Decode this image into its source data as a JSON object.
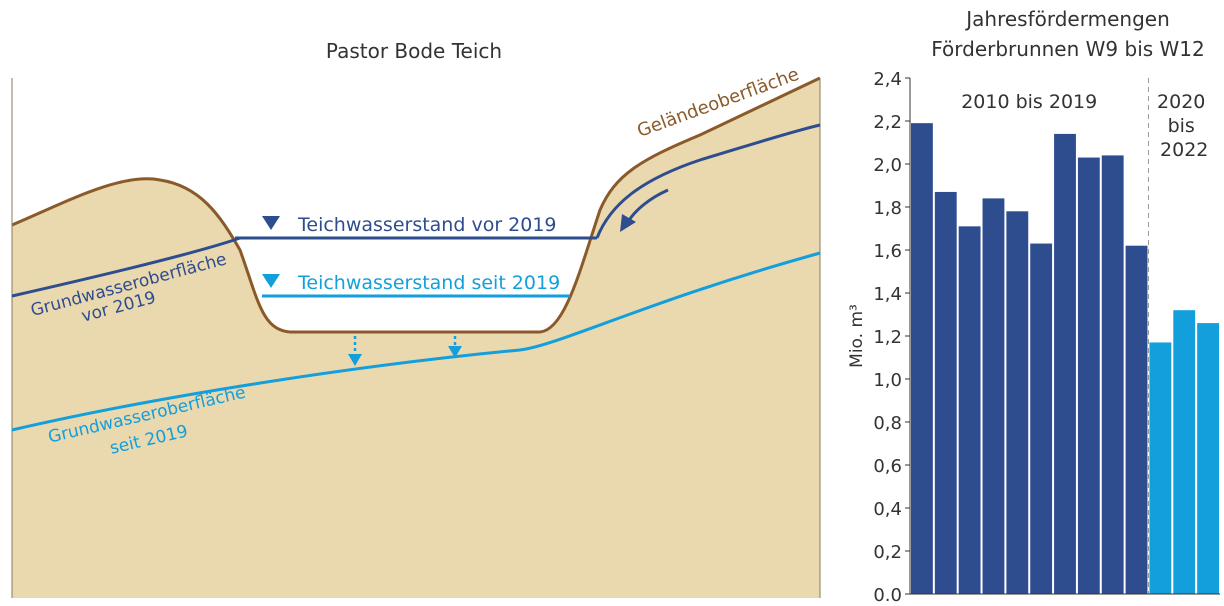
{
  "diagram": {
    "title": "Pastor Bode Teich",
    "labels": {
      "terrain": "Geländeoberfläche",
      "pond_before": "Teichwasserstand vor 2019",
      "pond_since": "Teichwasserstand seit 2019",
      "groundwater_before": [
        "Grundwasseroberfläche",
        "vor 2019"
      ],
      "groundwater_since": [
        "Grundwasseroberfläche",
        "seit 2019"
      ]
    }
  },
  "chart_data": {
    "type": "bar",
    "title": [
      "Jahresfördermengen",
      "Förderbrunnen W9 bis W12"
    ],
    "y_label": "Mio. m³",
    "categories": [
      null,
      null,
      null,
      null,
      null,
      null,
      null,
      null,
      null,
      null,
      null,
      null,
      null
    ],
    "series": [
      {
        "name": "2010 bis 2019",
        "color": "#2e4d8f",
        "values": [
          2.19,
          1.87,
          1.71,
          1.84,
          1.78,
          1.63,
          2.14,
          2.03,
          2.04,
          1.62,
          null,
          null,
          null
        ]
      },
      {
        "name": "2020 bis 2022",
        "color": "#129fdc",
        "values": [
          null,
          null,
          null,
          null,
          null,
          null,
          null,
          null,
          null,
          null,
          1.17,
          1.32,
          1.26
        ]
      }
    ],
    "ylim": [
      0,
      2.4
    ],
    "yticks": [
      {
        "value": 0,
        "label": "0.0"
      },
      {
        "value": 0.2,
        "label": "0,2"
      },
      {
        "value": 0.4,
        "label": "0,4"
      },
      {
        "value": 0.6,
        "label": "0,6"
      },
      {
        "value": 0.8,
        "label": "0,8"
      },
      {
        "value": 1.0,
        "label": "1,0"
      },
      {
        "value": 1.2,
        "label": "1,2"
      },
      {
        "value": 1.4,
        "label": "1,4"
      },
      {
        "value": 1.6,
        "label": "1,6"
      },
      {
        "value": 1.8,
        "label": "1,8"
      },
      {
        "value": 2.0,
        "label": "2,0"
      },
      {
        "value": 2.2,
        "label": "2,2"
      },
      {
        "value": 2.4,
        "label": "2,4"
      }
    ]
  }
}
